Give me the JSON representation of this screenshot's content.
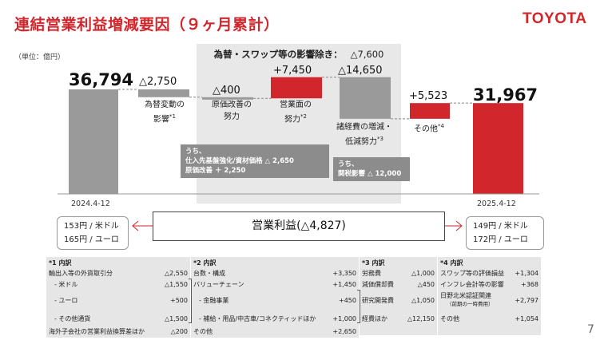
{
  "header": {
    "title": "連結営業利益増減要因（９ヶ月累計）",
    "logo": "TOYOTA",
    "unit": "（単位：億円）",
    "page_number": "7"
  },
  "adjusted": {
    "label": "為替・スワップ等の影響除き：",
    "value": "△7,600"
  },
  "chart_data": {
    "type": "waterfall",
    "title": "連結営業利益増減要因（９ヶ月累計）",
    "unit": "億円",
    "ylim": [
      0,
      40000
    ],
    "steps": [
      {
        "label": "2024.4-12",
        "value": 36794,
        "display": "36,794",
        "kind": "total",
        "color": "#9a9a9a"
      },
      {
        "label": "為替変動の影響",
        "note": "*1",
        "value": -2750,
        "display": "△2,750",
        "kind": "delta",
        "color": "#9a9a9a"
      },
      {
        "label": "原価改善の努力",
        "note": "",
        "value": -400,
        "display": "△400",
        "kind": "delta",
        "color": "#9a9a9a"
      },
      {
        "label": "営業面の努力",
        "note": "*2",
        "value": 7450,
        "display": "+7,450",
        "kind": "delta",
        "color": "#d0262c"
      },
      {
        "label": "諸経費の増減・低減努力",
        "note": "*3",
        "value": -14650,
        "display": "△14,650",
        "kind": "delta",
        "color": "#9a9a9a"
      },
      {
        "label": "その他",
        "note": "*4",
        "value": 5523,
        "display": "+5,523",
        "kind": "delta",
        "color": "#d0262c"
      },
      {
        "label": "2025.4-12",
        "value": 31967,
        "display": "31,967",
        "kind": "total",
        "color": "#d0262c"
      }
    ],
    "operating_income_change": "営業利益(△4,827)"
  },
  "labels": {
    "fx": [
      "為替変動の",
      "影響"
    ],
    "cost": [
      "原価改善の",
      "努力"
    ],
    "sales": [
      "営業面の",
      "努力"
    ],
    "expense": [
      "諸経費の増減・",
      "低減努力"
    ],
    "other": [
      "その他"
    ],
    "note1": "*1",
    "note2": "*2",
    "note3": "*3",
    "note4": "*4"
  },
  "notes": {
    "cost_box": [
      "うち、",
      "仕入先基盤強化/資材価格 △ 2,650",
      "原価改善 ＋ 2,250"
    ],
    "expense_box": [
      "うち、",
      "関税影響 △ 12,000"
    ]
  },
  "periods": {
    "start": "2024.4-12",
    "end": "2025.4-12"
  },
  "rates": {
    "start": [
      "153円 / 米ドル",
      "165円 / ユーロ"
    ],
    "end": [
      "149円 / 米ドル",
      "172円 / ユーロ"
    ]
  },
  "tables": {
    "t1": {
      "header": "*1 内訳",
      "rows": [
        {
          "label": "輸出入等の外貨取引分",
          "value": "△2,550"
        },
        {
          "label": "- 米ドル",
          "value": "△1,550"
        },
        {
          "label": "- ユーロ",
          "value": "+500"
        },
        {
          "label": "- その他通貨",
          "value": "△1,500"
        },
        {
          "label": "海外子会社の営業利益換算差ほか",
          "value": "△200"
        }
      ]
    },
    "t2": {
      "header": "*2 内訳",
      "rows": [
        {
          "label": "台数・構成",
          "value": "+3,350"
        },
        {
          "label": "バリューチェーン",
          "value": "+1,450"
        },
        {
          "label": "- 金融事業",
          "value": "+450"
        },
        {
          "label": "- 補給・用品/中古車/コネクティッドほか",
          "value": "+1,000"
        },
        {
          "label": "その他",
          "value": "+2,650"
        }
      ]
    },
    "t3": {
      "header": "*3 内訳",
      "rows": [
        {
          "label": "労務費",
          "value": "△1,000"
        },
        {
          "label": "減価償却費",
          "value": "△450"
        },
        {
          "label": "研究開発費",
          "value": "△1,050"
        },
        {
          "label": "経費ほか",
          "value": "△12,150"
        }
      ]
    },
    "t4": {
      "header": "*4 内訳",
      "rows": [
        {
          "label": "スワップ等の評価損益",
          "value": "+1,304"
        },
        {
          "label": "インフレ会計等の影響",
          "value": "+368"
        },
        {
          "label": "日野北米認証関連",
          "sub": "（前期の一時費用）",
          "value": "+2,797"
        },
        {
          "label": "その他",
          "value": "+1,054"
        }
      ]
    }
  }
}
